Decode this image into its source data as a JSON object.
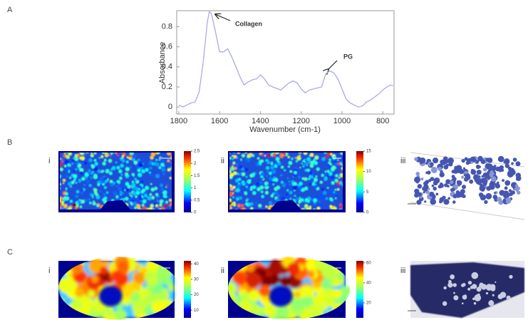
{
  "chart_data": {
    "type": "line",
    "panel_label": "A",
    "x_label": "Wavenumber (cm-1)",
    "y_label": "Absorbance",
    "xlim": [
      1810,
      745
    ],
    "ylim": [
      -0.07,
      0.96
    ],
    "xticks": [
      1800,
      1600,
      1400,
      1200,
      1000,
      800
    ],
    "yticks": [
      0,
      0.2,
      0.4,
      0.6,
      0.8
    ],
    "x": [
      1800,
      1780,
      1760,
      1740,
      1720,
      1700,
      1680,
      1660,
      1650,
      1640,
      1620,
      1600,
      1580,
      1560,
      1540,
      1520,
      1500,
      1480,
      1460,
      1440,
      1420,
      1400,
      1380,
      1360,
      1340,
      1300,
      1260,
      1240,
      1220,
      1200,
      1180,
      1160,
      1140,
      1120,
      1100,
      1080,
      1060,
      1040,
      1020,
      1000,
      980,
      960,
      940,
      920,
      900,
      880,
      860,
      840,
      820,
      800,
      780,
      760,
      750
    ],
    "series": [
      {
        "color": "#a9a9ea",
        "values": [
          0.02,
          0.0,
          0.02,
          0.04,
          0.05,
          0.15,
          0.45,
          0.85,
          0.95,
          0.93,
          0.75,
          0.55,
          0.55,
          0.58,
          0.5,
          0.4,
          0.3,
          0.22,
          0.25,
          0.27,
          0.28,
          0.32,
          0.28,
          0.22,
          0.2,
          0.17,
          0.24,
          0.26,
          0.24,
          0.18,
          0.14,
          0.17,
          0.18,
          0.19,
          0.2,
          0.33,
          0.36,
          0.34,
          0.28,
          0.18,
          0.08,
          0.04,
          0.02,
          0.0,
          0.01,
          0.05,
          0.07,
          0.1,
          0.13,
          0.17,
          0.2,
          0.22,
          0.21
        ]
      }
    ],
    "annotations": [
      "Collagen",
      "PG"
    ]
  },
  "panels": [
    {
      "label": "B",
      "items": [
        {
          "numeral": "i",
          "cbar_lim": [
            0,
            2.5
          ],
          "cbar_ticks": [
            0,
            0.5,
            1,
            1.5,
            2,
            2.5
          ]
        },
        {
          "numeral": "ii",
          "cbar_lim": [
            0,
            15
          ],
          "cbar_ticks": [
            0,
            5,
            10,
            15
          ]
        },
        {
          "numeral": "iii"
        }
      ]
    },
    {
      "label": "C",
      "items": [
        {
          "numeral": "i",
          "cbar_lim": [
            5,
            42
          ],
          "cbar_ticks": [
            10,
            20,
            30,
            40
          ]
        },
        {
          "numeral": "ii",
          "cbar_lim": [
            5,
            62
          ],
          "cbar_ticks": [
            20,
            40,
            60
          ]
        },
        {
          "numeral": "iii"
        }
      ]
    }
  ]
}
